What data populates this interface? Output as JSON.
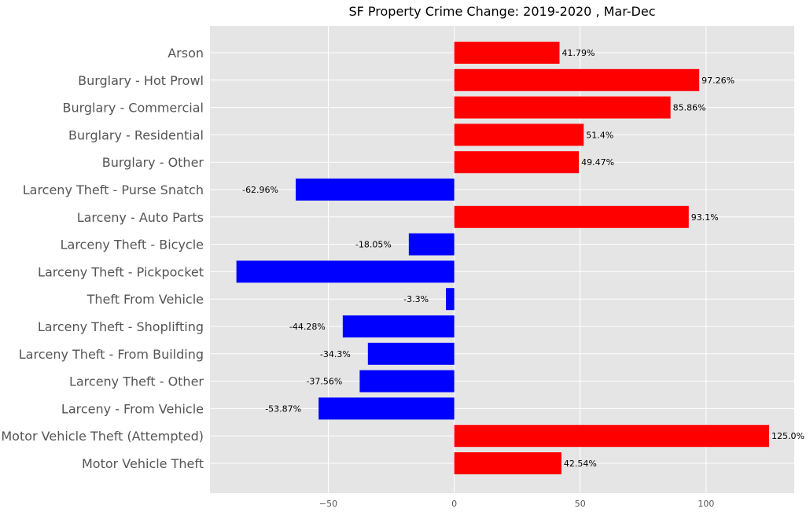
{
  "chart_data": {
    "type": "bar",
    "orientation": "horizontal",
    "title": "SF Property Crime Change: 2019-2020 , Mar-Dec",
    "xlabel": "",
    "ylabel": "",
    "xlim": [
      -97,
      135
    ],
    "xticks": [
      -50,
      0,
      50,
      100
    ],
    "xtick_labels": [
      "−50",
      "0",
      "50",
      "100"
    ],
    "grid": true,
    "positive_color": "#ff0000",
    "negative_color": "#0000ff",
    "background_color": "#e5e5e5",
    "categories": [
      "Arson",
      "Burglary - Hot Prowl",
      "Burglary - Commercial",
      "Burglary - Residential",
      "Burglary - Other",
      "Larceny Theft - Purse Snatch",
      "Larceny - Auto Parts",
      "Larceny Theft - Bicycle",
      "Larceny Theft - Pickpocket",
      "Theft From Vehicle",
      "Larceny Theft - Shoplifting",
      "Larceny Theft - From Building",
      "Larceny Theft - Other",
      "Larceny - From Vehicle",
      "Motor Vehicle Theft (Attempted)",
      "Motor Vehicle Theft"
    ],
    "values": [
      41.79,
      97.26,
      85.86,
      51.4,
      49.47,
      -62.96,
      93.1,
      -18.05,
      -86.5,
      -3.3,
      -44.28,
      -34.3,
      -37.56,
      -53.87,
      125.0,
      42.54
    ],
    "value_labels": [
      "41.79%",
      "97.26%",
      "85.86%",
      "51.4%",
      "49.47%",
      "-62.96%",
      "93.1%",
      "-18.05%",
      "",
      "-3.3%",
      "-44.28%",
      "-34.3%",
      "-37.56%",
      "-53.87%",
      "125.0%",
      "42.54%"
    ]
  }
}
